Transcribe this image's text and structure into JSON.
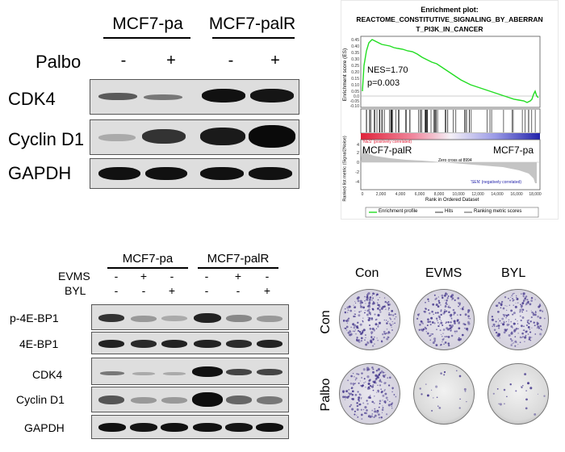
{
  "panel_a": {
    "group1": "MCF7-pa",
    "group2": "MCF7-palR",
    "treatment_label": "Palbo",
    "signs": [
      "-",
      "+",
      "-",
      "+"
    ],
    "rows": [
      "CDK4",
      "Cyclin D1",
      "GAPDH"
    ]
  },
  "gsea": {
    "title1": "Enrichment plot:",
    "title2": "REACTOME_CONSTITUTIVE_SIGNALING_BY_ABERRAN",
    "title3": "T_PI3K_IN_CANCER",
    "ylabel_top": "Enrichment score (ES)",
    "ylabel_bottom": "Ranked list metric (Signal2Noise)",
    "yticks_top": [
      "0.45",
      "0.40",
      "0.35",
      "0.30",
      "0.25",
      "0.20",
      "0.15",
      "0.10",
      "0.05",
      "0.0",
      "-0.05",
      "-0.10"
    ],
    "yticks_bottom": [
      "4",
      "2",
      "0",
      "-2",
      "-4"
    ],
    "nes": "NES=1.70",
    "p": "p=0.003",
    "pos_label": "'NES' (positively correlated)",
    "neg_label": "'SEN' (negatively correlated)",
    "left_group": "MCF7-palR",
    "right_group": "MCF7-pa",
    "zero_cross": "Zero cross at 8994",
    "xticks": [
      "0",
      "2,000",
      "4,000",
      "6,000",
      "8,000",
      "10,000",
      "12,000",
      "14,000",
      "16,000",
      "18,000"
    ],
    "xlabel": "Rank in Ordered Dataset",
    "legend": [
      "Enrichment profile",
      "Hits",
      "Ranking metric scores"
    ],
    "colors": {
      "profile": "#22dd22",
      "pos": "#e0223a",
      "neg": "#2222aa"
    }
  },
  "panel_c": {
    "group1": "MCF7-pa",
    "group2": "MCF7-palR",
    "treatments": [
      {
        "label": "EVMS",
        "signs": [
          "-",
          "+",
          "-",
          "-",
          "+",
          "-"
        ]
      },
      {
        "label": "BYL",
        "signs": [
          "-",
          "-",
          "+",
          "-",
          "-",
          "+"
        ]
      }
    ],
    "rows": [
      "p-4E-BP1",
      "4E-BP1",
      "CDK4",
      "Cyclin D1",
      "GAPDH"
    ]
  },
  "panel_d": {
    "columns": [
      "Con",
      "EVMS",
      "BYL"
    ],
    "rows": [
      "Con",
      "Palbo"
    ],
    "colony_density": [
      [
        0.9,
        0.75,
        0.8
      ],
      [
        0.75,
        0.08,
        0.08
      ]
    ],
    "colony_color": "#4a3d8f"
  }
}
